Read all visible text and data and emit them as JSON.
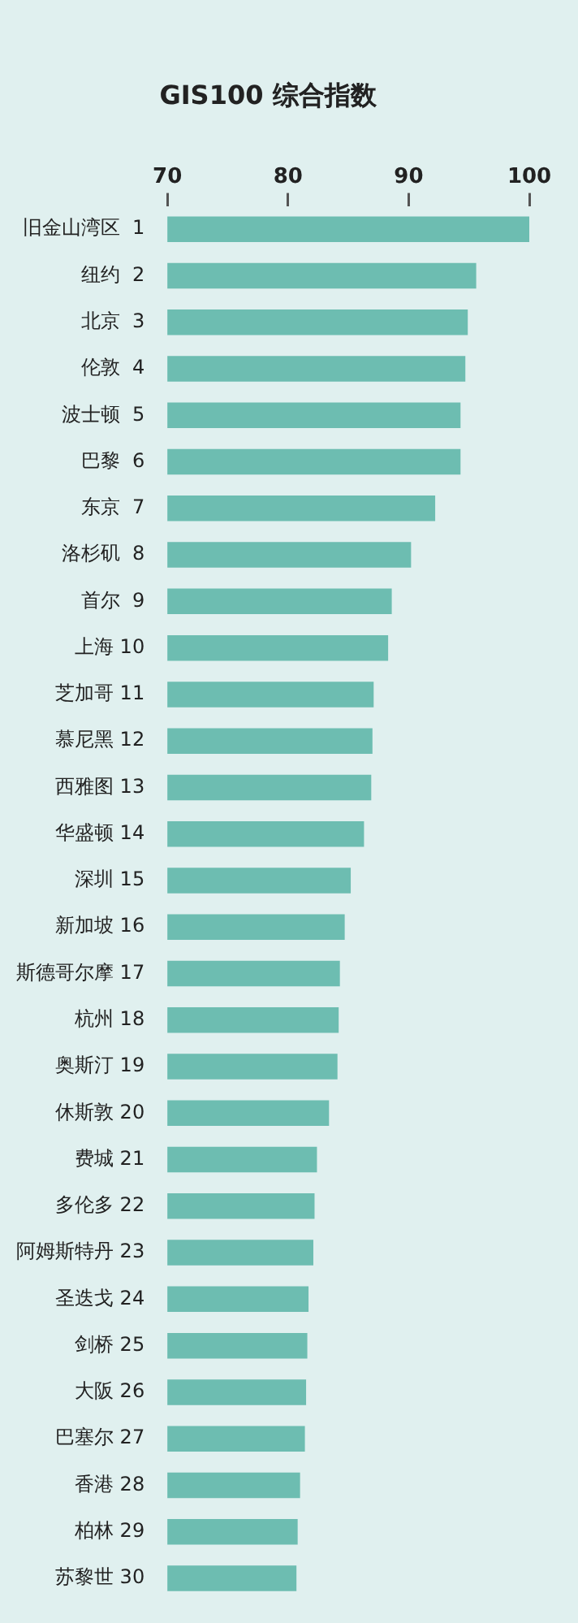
{
  "chart_data": {
    "type": "bar",
    "orientation": "horizontal",
    "title": "GIS100 综合指数",
    "categories": [
      "旧金山湾区  1",
      "纽约  2",
      "北京  3",
      "伦敦  4",
      "波士顿  5",
      "巴黎  6",
      "东京  7",
      "洛杉矶  8",
      "首尔  9",
      "上海 10",
      "芝加哥 11",
      "慕尼黑 12",
      "西雅图 13",
      "华盛顿 14",
      "深圳 15",
      "新加坡 16",
      "斯德哥尔摩 17",
      "杭州 18",
      "奥斯汀 19",
      "休斯敦 20",
      "费城 21",
      "多伦多 22",
      "阿姆斯特丹 23",
      "圣迭戈 24",
      "剑桥 25",
      "大阪 26",
      "巴塞尔 27",
      "香港 28",
      "柏林 29",
      "苏黎世 30"
    ],
    "values": [
      100,
      95.6,
      94.9,
      94.7,
      94.3,
      94.3,
      92.2,
      90.2,
      88.6,
      88.3,
      87.1,
      87.0,
      86.9,
      86.3,
      85.2,
      84.7,
      84.3,
      84.2,
      84.1,
      83.4,
      82.4,
      82.2,
      82.1,
      81.7,
      81.6,
      81.5,
      81.4,
      81.0,
      80.8,
      80.7
    ],
    "color": "#6dbdb1",
    "xlim": [
      70,
      100
    ],
    "xticks": [
      70,
      80,
      90,
      100
    ],
    "grid": false,
    "legend": false
  }
}
